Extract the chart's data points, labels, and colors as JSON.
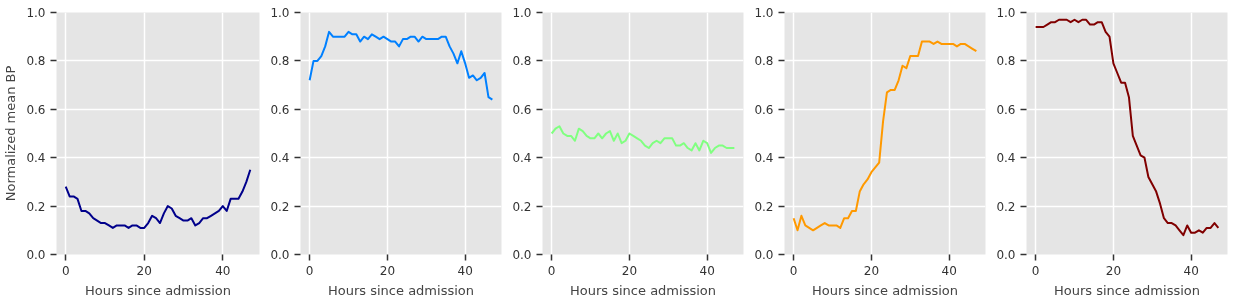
{
  "chart_data": [
    {
      "type": "line",
      "xlabel": "Hours since admission",
      "ylabel": "Normalized mean BP",
      "xlim": [
        -2.35,
        49.35
      ],
      "ylim": [
        0,
        1
      ],
      "xticks": [
        0,
        20,
        40
      ],
      "yticks": [
        {
          "value": 0,
          "label": "0.0"
        },
        {
          "value": 0.2,
          "label": "0.2"
        },
        {
          "value": 0.4,
          "label": "0.4"
        },
        {
          "value": 0.6,
          "label": "0.6"
        },
        {
          "value": 0.8,
          "label": "0.8"
        },
        {
          "value": 1,
          "label": "1.0"
        }
      ],
      "grid": true,
      "x": [
        0,
        1,
        2,
        3,
        4,
        5,
        6,
        7,
        8,
        9,
        10,
        11,
        12,
        13,
        14,
        15,
        16,
        17,
        18,
        19,
        20,
        21,
        22,
        23,
        24,
        25,
        26,
        27,
        28,
        29,
        30,
        31,
        32,
        33,
        34,
        35,
        36,
        37,
        38,
        39,
        40,
        41,
        42,
        43,
        44,
        45,
        46,
        47
      ],
      "series": [
        {
          "color": "#00008b",
          "values": [
            0.28,
            0.24,
            0.24,
            0.23,
            0.18,
            0.18,
            0.17,
            0.15,
            0.14,
            0.13,
            0.13,
            0.12,
            0.11,
            0.12,
            0.12,
            0.12,
            0.11,
            0.12,
            0.12,
            0.11,
            0.11,
            0.13,
            0.16,
            0.15,
            0.13,
            0.17,
            0.2,
            0.19,
            0.16,
            0.15,
            0.14,
            0.14,
            0.15,
            0.12,
            0.13,
            0.15,
            0.15,
            0.16,
            0.17,
            0.18,
            0.2,
            0.18,
            0.23,
            0.23,
            0.23,
            0.26,
            0.3,
            0.35
          ]
        }
      ]
    },
    {
      "type": "line",
      "xlabel": "Hours since admission",
      "xlim": [
        -2.35,
        49.35
      ],
      "ylim": [
        0,
        1
      ],
      "xticks": [
        0,
        20,
        40
      ],
      "yticks": [
        {
          "value": 0,
          "label": "0.0"
        },
        {
          "value": 0.2,
          "label": "0.2"
        },
        {
          "value": 0.4,
          "label": "0.4"
        },
        {
          "value": 0.6,
          "label": "0.6"
        },
        {
          "value": 0.8,
          "label": "0.8"
        },
        {
          "value": 1,
          "label": "1.0"
        }
      ],
      "grid": true,
      "x": [
        0,
        1,
        2,
        3,
        4,
        5,
        6,
        7,
        8,
        9,
        10,
        11,
        12,
        13,
        14,
        15,
        16,
        17,
        18,
        19,
        20,
        21,
        22,
        23,
        24,
        25,
        26,
        27,
        28,
        29,
        30,
        31,
        32,
        33,
        34,
        35,
        36,
        37,
        38,
        39,
        40,
        41,
        42,
        43,
        44,
        45,
        46,
        47
      ],
      "series": [
        {
          "color": "#0080ff",
          "values": [
            0.72,
            0.8,
            0.8,
            0.82,
            0.86,
            0.92,
            0.9,
            0.9,
            0.9,
            0.9,
            0.92,
            0.91,
            0.91,
            0.88,
            0.9,
            0.89,
            0.91,
            0.9,
            0.89,
            0.9,
            0.89,
            0.88,
            0.88,
            0.86,
            0.89,
            0.89,
            0.9,
            0.9,
            0.88,
            0.9,
            0.89,
            0.89,
            0.89,
            0.89,
            0.9,
            0.9,
            0.86,
            0.83,
            0.79,
            0.84,
            0.79,
            0.73,
            0.74,
            0.72,
            0.73,
            0.75,
            0.65,
            0.64
          ]
        }
      ]
    },
    {
      "type": "line",
      "xlabel": "Hours since admission",
      "xlim": [
        -2.35,
        49.35
      ],
      "ylim": [
        0,
        1
      ],
      "xticks": [
        0,
        20,
        40
      ],
      "yticks": [
        {
          "value": 0,
          "label": "0.0"
        },
        {
          "value": 0.2,
          "label": "0.2"
        },
        {
          "value": 0.4,
          "label": "0.4"
        },
        {
          "value": 0.6,
          "label": "0.6"
        },
        {
          "value": 0.8,
          "label": "0.8"
        },
        {
          "value": 1,
          "label": "1.0"
        }
      ],
      "grid": true,
      "x": [
        0,
        1,
        2,
        3,
        4,
        5,
        6,
        7,
        8,
        9,
        10,
        11,
        12,
        13,
        14,
        15,
        16,
        17,
        18,
        19,
        20,
        21,
        22,
        23,
        24,
        25,
        26,
        27,
        28,
        29,
        30,
        31,
        32,
        33,
        34,
        35,
        36,
        37,
        38,
        39,
        40,
        41,
        42,
        43,
        44,
        45,
        46,
        47
      ],
      "series": [
        {
          "color": "#80ff80",
          "values": [
            0.5,
            0.52,
            0.53,
            0.5,
            0.49,
            0.49,
            0.47,
            0.52,
            0.51,
            0.49,
            0.48,
            0.48,
            0.5,
            0.48,
            0.5,
            0.51,
            0.47,
            0.5,
            0.46,
            0.47,
            0.5,
            0.49,
            0.48,
            0.47,
            0.45,
            0.44,
            0.46,
            0.47,
            0.46,
            0.48,
            0.48,
            0.48,
            0.45,
            0.45,
            0.46,
            0.44,
            0.43,
            0.46,
            0.43,
            0.47,
            0.46,
            0.42,
            0.44,
            0.45,
            0.45,
            0.44,
            0.44,
            0.44
          ]
        }
      ]
    },
    {
      "type": "line",
      "xlabel": "Hours since admission",
      "xlim": [
        -2.35,
        49.35
      ],
      "ylim": [
        0,
        1
      ],
      "xticks": [
        0,
        20,
        40
      ],
      "yticks": [
        {
          "value": 0,
          "label": "0.0"
        },
        {
          "value": 0.2,
          "label": "0.2"
        },
        {
          "value": 0.4,
          "label": "0.4"
        },
        {
          "value": 0.6,
          "label": "0.6"
        },
        {
          "value": 0.8,
          "label": "0.8"
        },
        {
          "value": 1,
          "label": "1.0"
        }
      ],
      "grid": true,
      "x": [
        0,
        1,
        2,
        3,
        4,
        5,
        6,
        7,
        8,
        9,
        10,
        11,
        12,
        13,
        14,
        15,
        16,
        17,
        18,
        19,
        20,
        21,
        22,
        23,
        24,
        25,
        26,
        27,
        28,
        29,
        30,
        31,
        32,
        33,
        34,
        35,
        36,
        37,
        38,
        39,
        40,
        41,
        42,
        43,
        44,
        45,
        46,
        47
      ],
      "series": [
        {
          "color": "#ff9900",
          "values": [
            0.15,
            0.1,
            0.16,
            0.12,
            0.11,
            0.1,
            0.11,
            0.12,
            0.13,
            0.12,
            0.12,
            0.12,
            0.11,
            0.15,
            0.15,
            0.18,
            0.18,
            0.26,
            0.29,
            0.31,
            0.34,
            0.36,
            0.38,
            0.55,
            0.67,
            0.68,
            0.68,
            0.72,
            0.78,
            0.77,
            0.82,
            0.82,
            0.82,
            0.88,
            0.88,
            0.88,
            0.87,
            0.88,
            0.87,
            0.87,
            0.87,
            0.87,
            0.86,
            0.87,
            0.87,
            0.86,
            0.85,
            0.84
          ]
        }
      ]
    },
    {
      "type": "line",
      "xlabel": "Hours since admission",
      "xlim": [
        -2.35,
        49.35
      ],
      "ylim": [
        0,
        1
      ],
      "xticks": [
        0,
        20,
        40
      ],
      "yticks": [
        {
          "value": 0,
          "label": "0.0"
        },
        {
          "value": 0.2,
          "label": "0.2"
        },
        {
          "value": 0.4,
          "label": "0.4"
        },
        {
          "value": 0.6,
          "label": "0.6"
        },
        {
          "value": 0.8,
          "label": "0.8"
        },
        {
          "value": 1,
          "label": "1.0"
        }
      ],
      "grid": true,
      "x": [
        0,
        1,
        2,
        3,
        4,
        5,
        6,
        7,
        8,
        9,
        10,
        11,
        12,
        13,
        14,
        15,
        16,
        17,
        18,
        19,
        20,
        21,
        22,
        23,
        24,
        25,
        26,
        27,
        28,
        29,
        30,
        31,
        32,
        33,
        34,
        35,
        36,
        37,
        38,
        39,
        40,
        41,
        42,
        43,
        44,
        45,
        46,
        47
      ],
      "series": [
        {
          "color": "#800000",
          "values": [
            0.94,
            0.94,
            0.94,
            0.95,
            0.96,
            0.96,
            0.97,
            0.97,
            0.97,
            0.96,
            0.97,
            0.96,
            0.97,
            0.97,
            0.95,
            0.95,
            0.96,
            0.96,
            0.92,
            0.9,
            0.79,
            0.75,
            0.71,
            0.71,
            0.65,
            0.49,
            0.45,
            0.41,
            0.4,
            0.32,
            0.29,
            0.26,
            0.21,
            0.15,
            0.13,
            0.13,
            0.12,
            0.1,
            0.08,
            0.12,
            0.09,
            0.09,
            0.1,
            0.09,
            0.11,
            0.11,
            0.13,
            0.11
          ]
        }
      ]
    }
  ]
}
